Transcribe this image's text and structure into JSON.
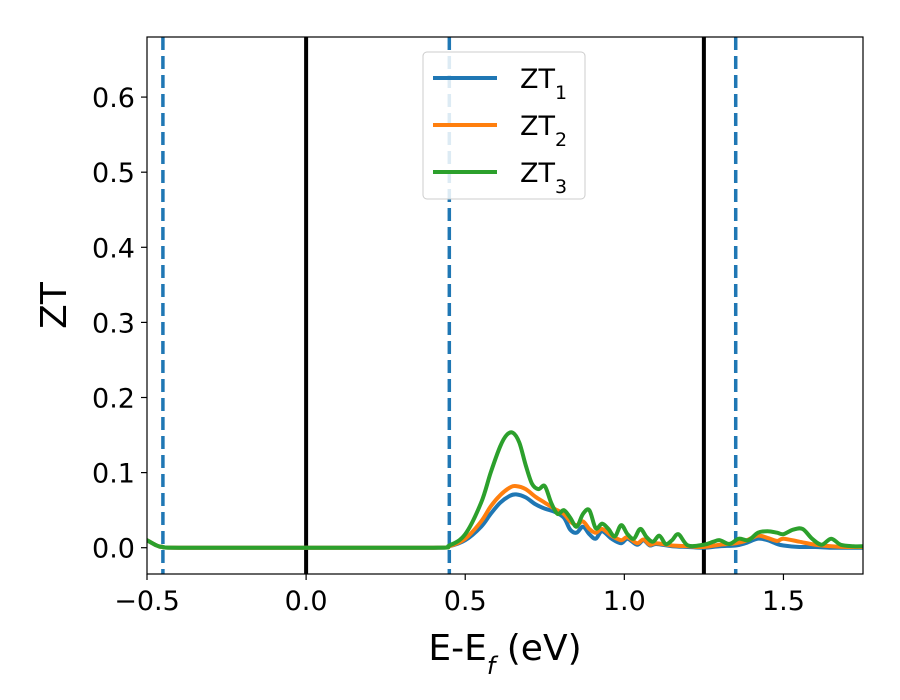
{
  "chart_data": {
    "type": "line",
    "xlabel": "E-E_f (eV)",
    "ylabel": "ZT",
    "xlim": [
      -0.5,
      1.75
    ],
    "ylim": [
      -0.035,
      0.68
    ],
    "xticks": [
      -0.5,
      0.0,
      0.5,
      1.0,
      1.5
    ],
    "xtick_labels": [
      "−0.5",
      "0.0",
      "0.5",
      "1.0",
      "1.5"
    ],
    "yticks": [
      0.0,
      0.1,
      0.2,
      0.3,
      0.4,
      0.5,
      0.6
    ],
    "ytick_labels": [
      "0.0",
      "0.1",
      "0.2",
      "0.3",
      "0.4",
      "0.5",
      "0.6"
    ],
    "grid": false,
    "legend_position": "top-center",
    "vlines": [
      {
        "x": -0.45,
        "style": "dashed",
        "color": "#1f77b4"
      },
      {
        "x": 0.0,
        "style": "solid",
        "color": "#000000"
      },
      {
        "x": 0.45,
        "style": "dashed",
        "color": "#1f77b4"
      },
      {
        "x": 1.25,
        "style": "solid",
        "color": "#000000"
      },
      {
        "x": 1.35,
        "style": "dashed",
        "color": "#1f77b4"
      }
    ],
    "series": [
      {
        "name": "ZT",
        "subscript": "1",
        "color": "#1f77b4",
        "x": [
          -0.5,
          -0.47,
          -0.45,
          -0.4,
          0.0,
          0.4,
          0.45,
          0.5,
          0.55,
          0.58,
          0.61,
          0.64,
          0.66,
          0.69,
          0.72,
          0.75,
          0.78,
          0.81,
          0.83,
          0.85,
          0.87,
          0.89,
          0.91,
          0.93,
          0.96,
          0.99,
          1.01,
          1.04,
          1.06,
          1.08,
          1.1,
          1.15,
          1.2,
          1.25,
          1.3,
          1.35,
          1.38,
          1.42,
          1.45,
          1.48,
          1.5,
          1.55,
          1.6,
          1.65,
          1.7,
          1.75
        ],
        "y": [
          0.01,
          0.003,
          0.001,
          0.0,
          0.0,
          0.0,
          0.002,
          0.01,
          0.028,
          0.045,
          0.06,
          0.069,
          0.071,
          0.067,
          0.058,
          0.052,
          0.048,
          0.04,
          0.024,
          0.02,
          0.028,
          0.018,
          0.012,
          0.022,
          0.012,
          0.006,
          0.012,
          0.004,
          0.01,
          0.003,
          0.005,
          0.002,
          0.001,
          0.0,
          0.002,
          0.003,
          0.006,
          0.012,
          0.01,
          0.005,
          0.003,
          0.001,
          0.001,
          0.0,
          0.0,
          0.0
        ]
      },
      {
        "name": "ZT",
        "subscript": "2",
        "color": "#ff7f0e",
        "x": [
          -0.5,
          -0.47,
          -0.45,
          -0.4,
          0.0,
          0.4,
          0.45,
          0.5,
          0.55,
          0.58,
          0.61,
          0.64,
          0.66,
          0.69,
          0.72,
          0.75,
          0.78,
          0.81,
          0.83,
          0.85,
          0.87,
          0.89,
          0.91,
          0.93,
          0.96,
          0.99,
          1.01,
          1.04,
          1.06,
          1.08,
          1.1,
          1.15,
          1.2,
          1.25,
          1.3,
          1.35,
          1.38,
          1.42,
          1.45,
          1.48,
          1.5,
          1.55,
          1.6,
          1.65,
          1.7,
          1.75
        ],
        "y": [
          0.01,
          0.003,
          0.001,
          0.0,
          0.0,
          0.0,
          0.002,
          0.012,
          0.035,
          0.055,
          0.07,
          0.08,
          0.082,
          0.078,
          0.068,
          0.06,
          0.052,
          0.045,
          0.035,
          0.03,
          0.035,
          0.025,
          0.02,
          0.025,
          0.016,
          0.01,
          0.014,
          0.006,
          0.011,
          0.004,
          0.006,
          0.003,
          0.002,
          0.001,
          0.004,
          0.006,
          0.009,
          0.016,
          0.013,
          0.009,
          0.012,
          0.008,
          0.004,
          0.002,
          0.001,
          0.001
        ]
      },
      {
        "name": "ZT",
        "subscript": "3",
        "color": "#2ca02c",
        "x": [
          -0.5,
          -0.47,
          -0.45,
          -0.4,
          0.0,
          0.4,
          0.45,
          0.5,
          0.55,
          0.58,
          0.61,
          0.63,
          0.65,
          0.67,
          0.69,
          0.71,
          0.73,
          0.75,
          0.77,
          0.79,
          0.81,
          0.83,
          0.85,
          0.87,
          0.89,
          0.91,
          0.93,
          0.95,
          0.97,
          0.99,
          1.01,
          1.03,
          1.05,
          1.07,
          1.09,
          1.11,
          1.13,
          1.15,
          1.17,
          1.2,
          1.25,
          1.28,
          1.3,
          1.33,
          1.36,
          1.39,
          1.42,
          1.45,
          1.48,
          1.5,
          1.53,
          1.56,
          1.59,
          1.62,
          1.65,
          1.68,
          1.72,
          1.75
        ],
        "y": [
          0.01,
          0.003,
          0.001,
          0.0,
          0.0,
          0.0,
          0.003,
          0.018,
          0.06,
          0.1,
          0.135,
          0.15,
          0.153,
          0.14,
          0.11,
          0.085,
          0.078,
          0.082,
          0.06,
          0.045,
          0.05,
          0.04,
          0.028,
          0.045,
          0.05,
          0.026,
          0.032,
          0.025,
          0.015,
          0.03,
          0.018,
          0.012,
          0.025,
          0.014,
          0.008,
          0.016,
          0.005,
          0.01,
          0.018,
          0.003,
          0.004,
          0.008,
          0.01,
          0.005,
          0.012,
          0.01,
          0.02,
          0.022,
          0.02,
          0.018,
          0.024,
          0.025,
          0.012,
          0.004,
          0.012,
          0.004,
          0.002,
          0.002
        ]
      }
    ]
  }
}
